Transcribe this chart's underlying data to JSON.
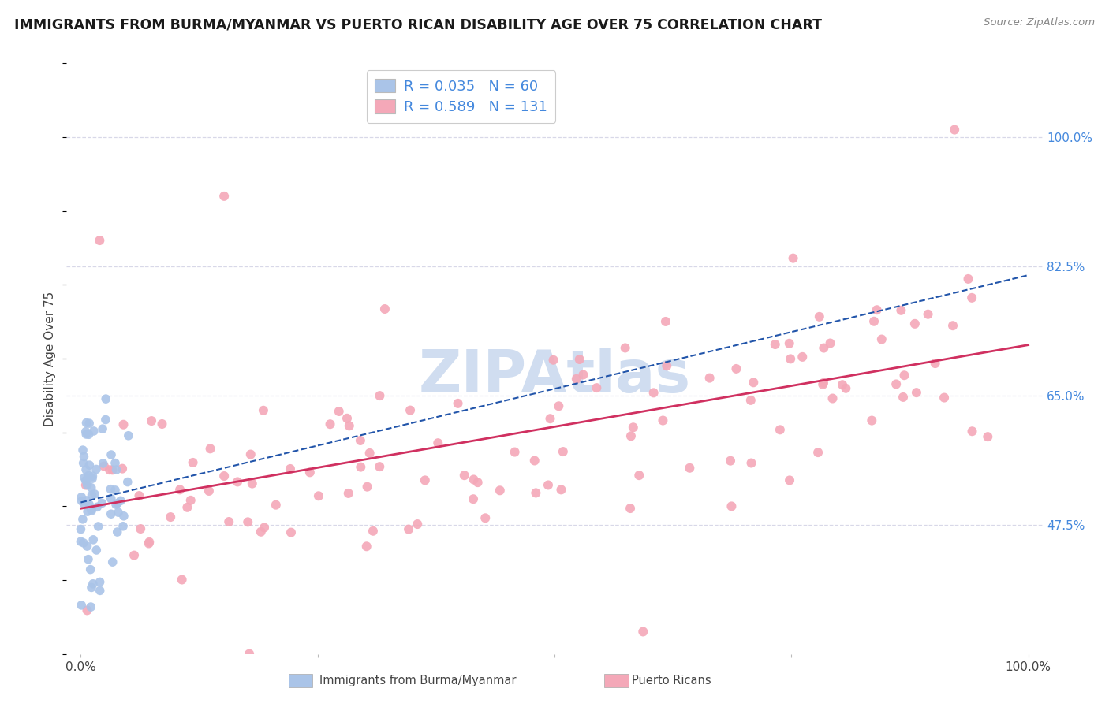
{
  "title": "IMMIGRANTS FROM BURMA/MYANMAR VS PUERTO RICAN DISABILITY AGE OVER 75 CORRELATION CHART",
  "source": "Source: ZipAtlas.com",
  "ylabel": "Disability Age Over 75",
  "ytick_labels": [
    "47.5%",
    "65.0%",
    "82.5%",
    "100.0%"
  ],
  "ytick_values": [
    0.475,
    0.65,
    0.825,
    1.0
  ],
  "legend_label1": "Immigrants from Burma/Myanmar",
  "legend_label2": "Puerto Ricans",
  "R1": 0.035,
  "N1": 60,
  "R2": 0.589,
  "N2": 131,
  "color1": "#aac4e8",
  "color2": "#f4a8b8",
  "line1_color": "#2255aa",
  "line2_color": "#d03060",
  "background_color": "#ffffff",
  "grid_color": "#d8d8e8",
  "title_color": "#1a1a1a",
  "source_color": "#888888",
  "right_tick_color": "#4488dd",
  "watermark_color": "#d0ddf0",
  "title_fontsize": 12.5,
  "axis_fontsize": 11,
  "legend_fontsize": 13
}
